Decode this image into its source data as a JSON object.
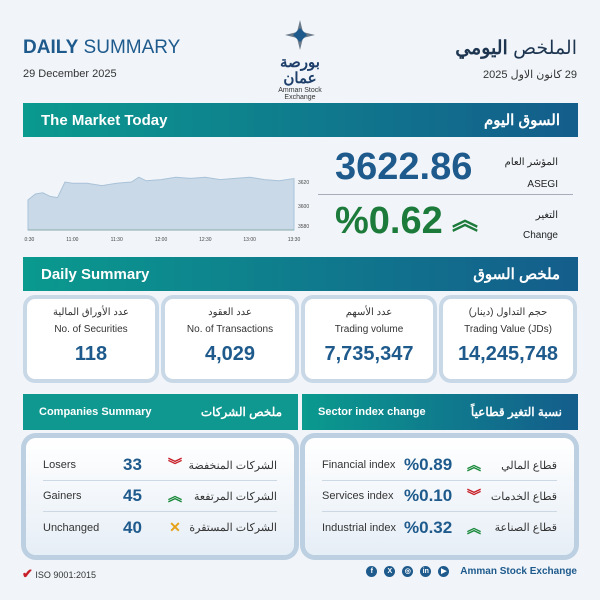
{
  "header": {
    "title_bold": "DAILY",
    "title_rest": "SUMMARY",
    "date_en": "29 December 2025",
    "title_ar_rest": "الملخص",
    "title_ar_bold": "اليومي",
    "date_ar": "29 كانون الاول 2025",
    "logo_ar": "بورصة عمان",
    "logo_en": "Amman Stock Exchange"
  },
  "market_today": {
    "title_en": "The Market Today",
    "title_ar": "السوق اليوم",
    "index_label_ar": "المؤشر العام",
    "index_label_en": "ASEGI",
    "index_value": "3622.86",
    "change_label_ar": "التغير",
    "change_label_en": "Change",
    "change_value": "%0.62",
    "change_direction": "up"
  },
  "chart_data": {
    "type": "area",
    "x": [
      "10:30",
      "10:35",
      "10:40",
      "10:45",
      "10:50",
      "10:55",
      "11:00",
      "11:10",
      "11:20",
      "11:30",
      "11:40",
      "11:45",
      "11:50",
      "12:00",
      "12:10",
      "12:20",
      "12:30",
      "12:40",
      "12:50",
      "13:00",
      "13:10",
      "13:20",
      "13:30"
    ],
    "values": [
      3605,
      3610,
      3611,
      3608,
      3607,
      3620,
      3619,
      3619,
      3617,
      3619,
      3620,
      3624,
      3621,
      3622,
      3624,
      3623,
      3624,
      3622,
      3623,
      3624,
      3622,
      3621,
      3622.86
    ],
    "xticks": [
      "10:30",
      "11:00",
      "11:30",
      "12:00",
      "12:30",
      "13:00",
      "13:30"
    ],
    "yticks": [
      3580,
      3600,
      3620
    ],
    "ylim": [
      3580,
      3630
    ],
    "color": "#c9d9e7"
  },
  "daily_summary": {
    "title_en": "Daily Summary",
    "title_ar": "ملخص السوق",
    "cards": [
      {
        "ar": "عدد الأوراق المالية",
        "en": "No. of Securities",
        "value": "118"
      },
      {
        "ar": "عدد العقود",
        "en": "No. of Transactions",
        "value": "4,029"
      },
      {
        "ar": "عدد الأسهم",
        "en": "Trading volume",
        "value": "7,735,347"
      },
      {
        "ar": "حجم التداول (دينار)",
        "en": "Trading Value (JDs)",
        "value": "14,245,748"
      }
    ]
  },
  "companies": {
    "title_en": "Companies Summary",
    "title_ar": "ملخص الشركات",
    "rows": [
      {
        "en": "Losers",
        "value": "33",
        "dir": "down",
        "ar": "الشركات المنخفضة"
      },
      {
        "en": "Gainers",
        "value": "45",
        "dir": "up",
        "ar": "الشركات المرتفعة"
      },
      {
        "en": "Unchanged",
        "value": "40",
        "dir": "flat",
        "ar": "الشركات المستقرة"
      }
    ]
  },
  "sectors": {
    "title_en": "Sector index change",
    "title_ar": "نسبة التغير قطاعياً",
    "rows": [
      {
        "en": "Financial index",
        "value": "%0.89",
        "dir": "up",
        "ar": "قطاع المالي"
      },
      {
        "en": "Services index",
        "value": "%0.10",
        "dir": "down",
        "ar": "قطاع الخدمات"
      },
      {
        "en": "Industrial index",
        "value": "%0.32",
        "dir": "up",
        "ar": "قطاع الصناعة"
      }
    ]
  },
  "footer": {
    "iso": "ISO 9001:2015",
    "brand": "Amman Stock Exchange",
    "social": [
      "facebook",
      "x",
      "instagram",
      "linkedin",
      "youtube"
    ]
  },
  "colors": {
    "accent": "#1e5a8c",
    "up": "#1c8a3c",
    "down": "#c8202a",
    "flat": "#e5a21a",
    "teal": "#0a9a8e"
  }
}
